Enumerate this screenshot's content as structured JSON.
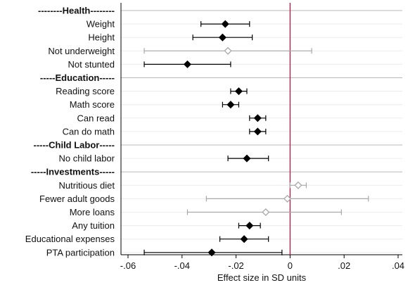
{
  "chart_data": {
    "type": "scatter",
    "subtype": "coefficient-plot",
    "xlabel": "Effect size in SD units",
    "xlim": [
      -0.06,
      0.04
    ],
    "xticks": [
      -0.06,
      -0.04,
      -0.02,
      0,
      0.02,
      0.04
    ],
    "xtick_labels": [
      "-.06",
      "-.04",
      "-.02",
      "0",
      ".02",
      ".04"
    ],
    "reference_line": {
      "x": 0,
      "color": "#c0143c"
    },
    "grid": "horizontal",
    "colors": {
      "significant": "#000000",
      "not_significant": "#a8a8a8",
      "header_line": "#b8b8b8",
      "row_grid": "#ececec"
    },
    "rows": [
      {
        "kind": "header",
        "label": "--------Health--------"
      },
      {
        "kind": "item",
        "label": "Weight",
        "estimate": -0.024,
        "ci": [
          -0.033,
          -0.015
        ],
        "significant": true
      },
      {
        "kind": "item",
        "label": "Height",
        "estimate": -0.025,
        "ci": [
          -0.036,
          -0.014
        ],
        "significant": true
      },
      {
        "kind": "item",
        "label": "Not underweight",
        "estimate": -0.023,
        "ci": [
          -0.054,
          0.008
        ],
        "significant": false
      },
      {
        "kind": "item",
        "label": "Not stunted",
        "estimate": -0.038,
        "ci": [
          -0.054,
          -0.022
        ],
        "significant": true
      },
      {
        "kind": "header",
        "label": "-----Education-----"
      },
      {
        "kind": "item",
        "label": "Reading score",
        "estimate": -0.019,
        "ci": [
          -0.022,
          -0.016
        ],
        "significant": true
      },
      {
        "kind": "item",
        "label": "Math score",
        "estimate": -0.022,
        "ci": [
          -0.025,
          -0.019
        ],
        "significant": true
      },
      {
        "kind": "item",
        "label": "Can read",
        "estimate": -0.012,
        "ci": [
          -0.015,
          -0.009
        ],
        "significant": true
      },
      {
        "kind": "item",
        "label": "Can do math",
        "estimate": -0.012,
        "ci": [
          -0.015,
          -0.009
        ],
        "significant": true
      },
      {
        "kind": "header",
        "label": "-----Child Labor-----"
      },
      {
        "kind": "item",
        "label": "No child labor",
        "estimate": -0.016,
        "ci": [
          -0.023,
          -0.008
        ],
        "significant": true
      },
      {
        "kind": "header",
        "label": "-----Investments-----"
      },
      {
        "kind": "item",
        "label": "Nutritious diet",
        "estimate": 0.003,
        "ci": [
          0.0,
          0.006
        ],
        "significant": false
      },
      {
        "kind": "item",
        "label": "Fewer adult goods",
        "estimate": -0.001,
        "ci": [
          -0.031,
          0.029
        ],
        "significant": false
      },
      {
        "kind": "item",
        "label": "More loans",
        "estimate": -0.009,
        "ci": [
          -0.038,
          0.019
        ],
        "significant": false
      },
      {
        "kind": "item",
        "label": "Any tuition",
        "estimate": -0.015,
        "ci": [
          -0.019,
          -0.011
        ],
        "significant": true
      },
      {
        "kind": "item",
        "label": "Educational expenses",
        "estimate": -0.017,
        "ci": [
          -0.026,
          -0.008
        ],
        "significant": true
      },
      {
        "kind": "item",
        "label": "PTA participation",
        "estimate": -0.029,
        "ci": [
          -0.054,
          -0.003
        ],
        "significant": true
      }
    ]
  }
}
